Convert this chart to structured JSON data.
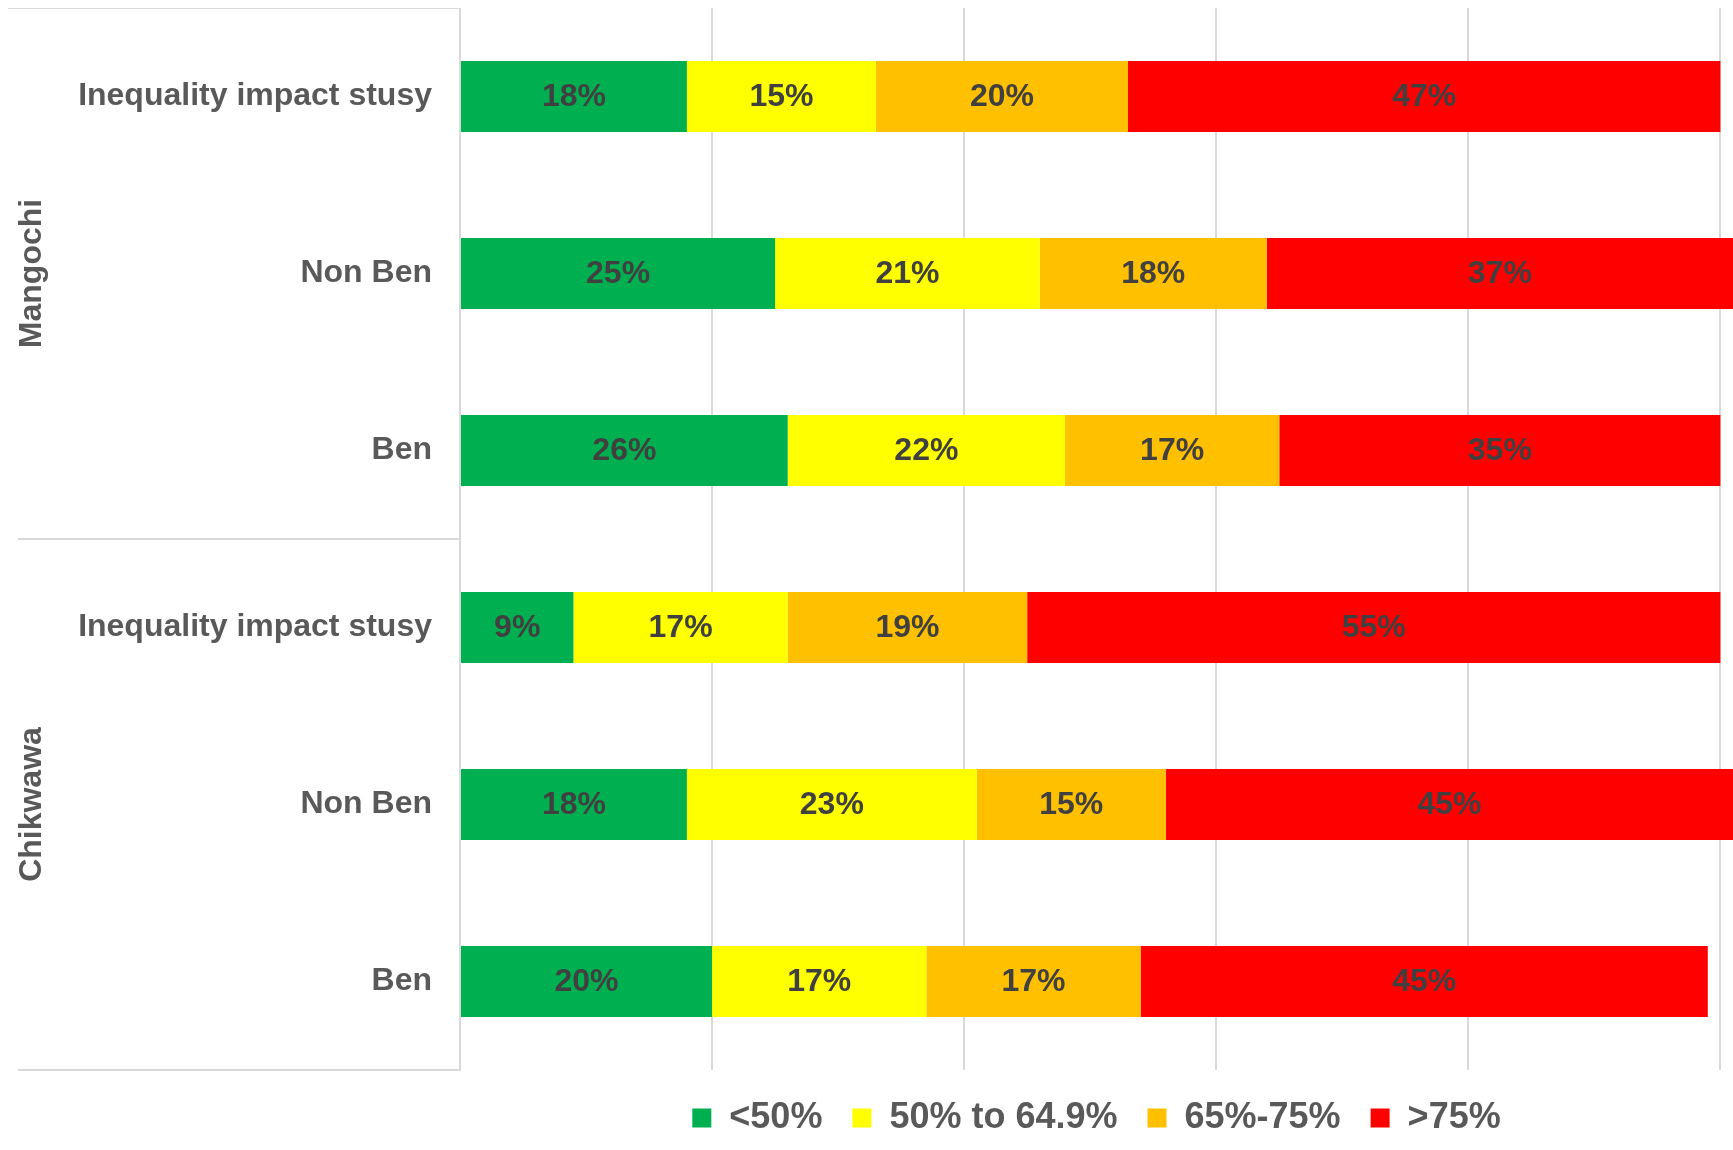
{
  "chart_data": {
    "type": "bar",
    "orientation": "horizontal",
    "stacked": true,
    "categories": [
      "Inequality impact stusy",
      "Non Ben",
      "Ben",
      "Inequality impact stusy",
      "Non Ben",
      "Ben"
    ],
    "series": [
      {
        "name": "<50%",
        "color": "#00b050",
        "values": [
          18,
          25,
          26,
          9,
          18,
          20
        ],
        "value_labels": [
          "18%",
          "25%",
          "26%",
          "9%",
          "18%",
          "20%"
        ]
      },
      {
        "name": "50% to 64.9%",
        "color": "#ffff00",
        "values": [
          15,
          21,
          22,
          17,
          23,
          17
        ],
        "value_labels": [
          "15%",
          "21%",
          "22%",
          "17%",
          "23%",
          "17%"
        ]
      },
      {
        "name": "65%-75%",
        "color": "#ffc000",
        "values": [
          20,
          18,
          17,
          19,
          15,
          17
        ],
        "value_labels": [
          "20%",
          "18%",
          "17%",
          "19%",
          "15%",
          "17%"
        ]
      },
      {
        "name": ">75%",
        "color": "#ff0000",
        "values": [
          47,
          37,
          35,
          55,
          45,
          45
        ],
        "value_labels": [
          "47%",
          "37%",
          "35%",
          "55%",
          "45%",
          "45%"
        ]
      }
    ],
    "xlim": [
      0,
      101
    ],
    "xticks": [
      {
        "value": 0,
        "label": null
      },
      {
        "value": 20,
        "label": null
      },
      {
        "value": 40,
        "label": null
      },
      {
        "value": 60,
        "label": null
      },
      {
        "value": 80,
        "label": null
      },
      {
        "value": 100,
        "label": null
      }
    ],
    "tick_labels": "y",
    "grid": "x",
    "legend": "bottom",
    "annotations": [
      "Mangochi",
      "Chikwawa"
    ]
  }
}
